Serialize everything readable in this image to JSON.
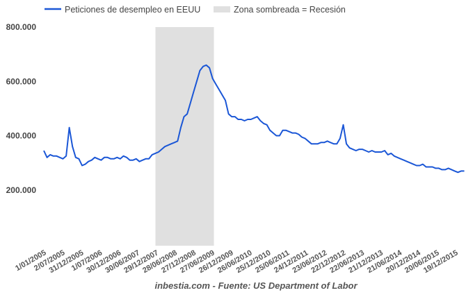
{
  "chart_data": {
    "type": "line",
    "title": "",
    "xlabel": "",
    "ylabel": "",
    "source": "inbestia.com - Fuente: US Department of Labor",
    "legend": [
      {
        "label": "Peticiones de desempleo en EEUU",
        "color": "#1a56d6",
        "kind": "line"
      },
      {
        "label": "Zona sombreada = Recesión",
        "color": "#e0e0e0",
        "kind": "area"
      }
    ],
    "legend_position": "top",
    "ylim": [
      0,
      800000
    ],
    "yticks": [
      {
        "v": 200000,
        "label": "200.000"
      },
      {
        "v": 400000,
        "label": "400.000"
      },
      {
        "v": 600000,
        "label": "600.000"
      },
      {
        "v": 800000,
        "label": "800.000"
      }
    ],
    "xlim": [
      2005.0,
      2016.1
    ],
    "xticks": [
      "1/01/2005",
      "2/07/2005",
      "31/12/2005",
      "1/07/2006",
      "30/12/2006",
      "30/06/2007",
      "29/12/2007",
      "28/06/2008",
      "27/12/2008",
      "27/06/2009",
      "26/12/2009",
      "26/06/2010",
      "25/12/2010",
      "25/06/2011",
      "24/12/2011",
      "23/06/2012",
      "22/12/2012",
      "22/06/2013",
      "21/12/2013",
      "21/06/2014",
      "20/12/2014",
      "20/06/2015",
      "19/12/2015"
    ],
    "recession": [
      2007.92,
      2009.45
    ],
    "series": [
      {
        "name": "Peticiones de desempleo en EEUU",
        "start": 2005.0,
        "step_years": 0.08333,
        "values": [
          345000,
          320000,
          330000,
          325000,
          325000,
          320000,
          315000,
          325000,
          430000,
          360000,
          320000,
          315000,
          290000,
          295000,
          305000,
          310000,
          320000,
          315000,
          310000,
          320000,
          320000,
          315000,
          315000,
          320000,
          315000,
          325000,
          320000,
          310000,
          310000,
          315000,
          305000,
          310000,
          315000,
          315000,
          330000,
          335000,
          340000,
          350000,
          360000,
          365000,
          370000,
          375000,
          380000,
          430000,
          470000,
          480000,
          520000,
          560000,
          600000,
          640000,
          655000,
          660000,
          650000,
          610000,
          590000,
          570000,
          550000,
          530000,
          480000,
          470000,
          470000,
          460000,
          460000,
          455000,
          460000,
          460000,
          465000,
          470000,
          455000,
          445000,
          440000,
          420000,
          410000,
          400000,
          400000,
          420000,
          420000,
          415000,
          410000,
          410000,
          405000,
          395000,
          390000,
          380000,
          370000,
          370000,
          370000,
          375000,
          375000,
          380000,
          375000,
          370000,
          370000,
          390000,
          440000,
          370000,
          355000,
          350000,
          345000,
          350000,
          350000,
          345000,
          340000,
          345000,
          340000,
          340000,
          340000,
          345000,
          330000,
          335000,
          325000,
          320000,
          315000,
          310000,
          305000,
          300000,
          295000,
          290000,
          290000,
          295000,
          285000,
          285000,
          285000,
          280000,
          280000,
          275000,
          275000,
          280000,
          275000,
          270000,
          265000,
          270000,
          270000
        ]
      }
    ]
  }
}
